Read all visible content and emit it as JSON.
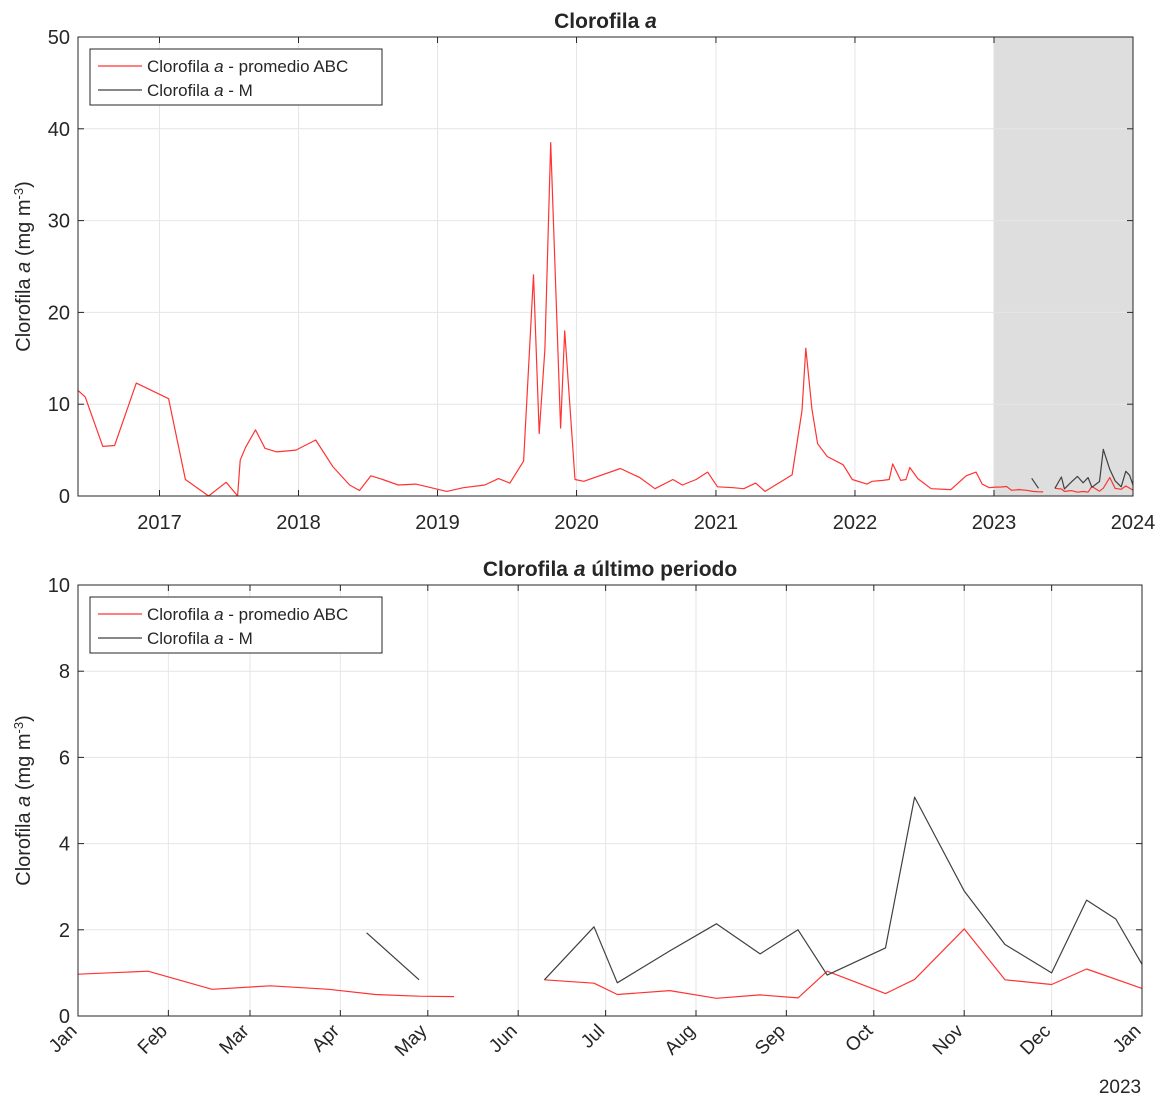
{
  "chart_data": [
    {
      "type": "line",
      "title": {
        "pre": "Clorofila ",
        "italic": "a",
        "post": ""
      },
      "ylabel": {
        "pre": "Clorofila ",
        "italic": "a",
        "post": " (mg m",
        "sup": "-3",
        "close": ")"
      },
      "xlabel": "",
      "xlim": [
        "2016-06-01",
        "2024-01-01"
      ],
      "ylim": [
        0,
        50
      ],
      "y_ticks": [
        0,
        10,
        20,
        30,
        40,
        50
      ],
      "x_ticks": [
        {
          "label": "2017",
          "date": "2017-01-01"
        },
        {
          "label": "2018",
          "date": "2018-01-01"
        },
        {
          "label": "2019",
          "date": "2019-01-01"
        },
        {
          "label": "2020",
          "date": "2020-01-01"
        },
        {
          "label": "2021",
          "date": "2021-01-01"
        },
        {
          "label": "2022",
          "date": "2022-01-01"
        },
        {
          "label": "2023",
          "date": "2023-01-01"
        },
        {
          "label": "2024",
          "date": "2024-01-01"
        }
      ],
      "grid": true,
      "legend": "top-left",
      "shaded_region": {
        "from": "2023-01-01",
        "to": "2024-01-01",
        "color": "#dedede"
      },
      "series": [
        {
          "name": {
            "pre": "Clorofila ",
            "italic": "a",
            "post": " - promedio ABC"
          },
          "color": "#ff3333",
          "points": [
            [
              "2016-06-01",
              11.5
            ],
            [
              "2016-06-20",
              10.8
            ],
            [
              "2016-08-05",
              5.4
            ],
            [
              "2016-09-05",
              5.5
            ],
            [
              "2016-11-01",
              12.3
            ],
            [
              "2017-01-25",
              10.6
            ],
            [
              "2017-03-10",
              1.8
            ],
            [
              "2017-05-10",
              0.0
            ],
            [
              "2017-06-25",
              1.5
            ],
            [
              "2017-07-25",
              0.0
            ],
            [
              "2017-08-01",
              3.9
            ],
            [
              "2017-08-15",
              5.3
            ],
            [
              "2017-09-10",
              7.2
            ],
            [
              "2017-10-05",
              5.2
            ],
            [
              "2017-11-05",
              4.8
            ],
            [
              "2017-12-25",
              5.0
            ],
            [
              "2018-02-15",
              6.1
            ],
            [
              "2018-04-01",
              3.2
            ],
            [
              "2018-05-15",
              1.2
            ],
            [
              "2018-06-10",
              0.6
            ],
            [
              "2018-07-10",
              2.2
            ],
            [
              "2018-08-10",
              1.8
            ],
            [
              "2018-09-20",
              1.2
            ],
            [
              "2018-11-05",
              1.3
            ],
            [
              "2018-12-15",
              0.9
            ],
            [
              "2019-01-25",
              0.5
            ],
            [
              "2019-03-10",
              0.9
            ],
            [
              "2019-05-05",
              1.2
            ],
            [
              "2019-06-10",
              1.9
            ],
            [
              "2019-07-10",
              1.4
            ],
            [
              "2019-08-15",
              3.8
            ],
            [
              "2019-09-10",
              24.1
            ],
            [
              "2019-09-25",
              6.8
            ],
            [
              "2019-10-10",
              16.0
            ],
            [
              "2019-10-25",
              38.5
            ],
            [
              "2019-11-20",
              7.4
            ],
            [
              "2019-12-01",
              18.0
            ],
            [
              "2019-12-28",
              1.8
            ],
            [
              "2020-01-20",
              1.6
            ],
            [
              "2020-04-25",
              3.0
            ],
            [
              "2020-06-15",
              2.0
            ],
            [
              "2020-07-25",
              0.8
            ],
            [
              "2020-09-10",
              1.8
            ],
            [
              "2020-10-05",
              1.2
            ],
            [
              "2020-11-10",
              1.8
            ],
            [
              "2020-12-10",
              2.6
            ],
            [
              "2021-01-05",
              1.0
            ],
            [
              "2021-02-15",
              0.9
            ],
            [
              "2021-03-15",
              0.8
            ],
            [
              "2021-04-15",
              1.4
            ],
            [
              "2021-05-10",
              0.5
            ],
            [
              "2021-07-20",
              2.3
            ],
            [
              "2021-08-15",
              9.3
            ],
            [
              "2021-08-25",
              16.1
            ],
            [
              "2021-09-10",
              9.5
            ],
            [
              "2021-09-25",
              5.7
            ],
            [
              "2021-10-20",
              4.3
            ],
            [
              "2021-12-01",
              3.4
            ],
            [
              "2021-12-25",
              1.8
            ],
            [
              "2022-02-01",
              1.3
            ],
            [
              "2022-02-15",
              1.6
            ],
            [
              "2022-03-15",
              1.7
            ],
            [
              "2022-04-01",
              1.8
            ],
            [
              "2022-04-10",
              3.5
            ],
            [
              "2022-05-01",
              1.7
            ],
            [
              "2022-05-15",
              1.8
            ],
            [
              "2022-05-25",
              3.1
            ],
            [
              "2022-06-15",
              1.9
            ],
            [
              "2022-07-20",
              0.8
            ],
            [
              "2022-09-10",
              0.7
            ],
            [
              "2022-10-20",
              2.2
            ],
            [
              "2022-11-15",
              2.6
            ],
            [
              "2022-12-01",
              1.3
            ],
            [
              "2022-12-20",
              0.9
            ],
            [
              "2023-01-05",
              0.97
            ],
            [
              "2023-01-20",
              0.98
            ],
            [
              "2023-02-03",
              1.04
            ],
            [
              "2023-02-16",
              0.62
            ],
            [
              "2023-03-08",
              0.7
            ],
            [
              "2023-03-28",
              0.62
            ],
            [
              "2023-04-13",
              0.5
            ],
            [
              "2023-04-28",
              0.46
            ],
            [
              "2023-05-10",
              0.45
            ],
            null,
            [
              "2023-06-10",
              0.84
            ],
            [
              "2023-06-27",
              0.76
            ],
            [
              "2023-07-05",
              0.5
            ],
            [
              "2023-07-23",
              0.59
            ],
            [
              "2023-08-08",
              0.41
            ],
            [
              "2023-08-23",
              0.49
            ],
            [
              "2023-09-05",
              0.42
            ],
            [
              "2023-09-15",
              1.04
            ],
            [
              "2023-10-05",
              0.52
            ],
            [
              "2023-10-15",
              0.85
            ],
            [
              "2023-11-01",
              2.02
            ],
            [
              "2023-11-15",
              0.84
            ],
            [
              "2023-12-01",
              0.73
            ],
            [
              "2023-12-13",
              1.09
            ],
            [
              "2024-01-01",
              0.64
            ]
          ]
        },
        {
          "name": {
            "pre": "Clorofila ",
            "italic": "a",
            "post": " - M"
          },
          "color": "#404040",
          "points": [
            [
              "2023-04-10",
              1.93
            ],
            [
              "2023-04-28",
              0.84
            ],
            null,
            [
              "2023-06-10",
              0.84
            ],
            [
              "2023-06-27",
              2.07
            ],
            [
              "2023-07-05",
              0.77
            ],
            [
              "2023-07-23",
              1.51
            ],
            [
              "2023-08-08",
              2.14
            ],
            [
              "2023-08-23",
              1.44
            ],
            [
              "2023-09-05",
              2.0
            ],
            [
              "2023-09-15",
              0.95
            ],
            [
              "2023-10-05",
              1.58
            ],
            [
              "2023-10-15",
              5.08
            ],
            [
              "2023-11-01",
              2.9
            ],
            [
              "2023-11-15",
              1.66
            ],
            [
              "2023-12-01",
              1.0
            ],
            [
              "2023-12-13",
              2.69
            ],
            [
              "2023-12-23",
              2.25
            ],
            [
              "2024-01-01",
              1.2
            ]
          ]
        }
      ]
    },
    {
      "type": "line",
      "title": {
        "pre": "Clorofila ",
        "italic": "a",
        "post": " último periodo"
      },
      "ylabel": {
        "pre": "Clorofila ",
        "italic": "a",
        "post": " (mg m",
        "sup": "-3",
        "close": ")"
      },
      "xlabel": "",
      "year_label": "2023",
      "xlim": [
        "2023-01-01",
        "2024-01-01"
      ],
      "ylim": [
        0,
        10
      ],
      "y_ticks": [
        0,
        2,
        4,
        6,
        8,
        10
      ],
      "x_ticks": [
        {
          "label": "Jan",
          "date": "2023-01-01"
        },
        {
          "label": "Feb",
          "date": "2023-02-01"
        },
        {
          "label": "Mar",
          "date": "2023-03-01"
        },
        {
          "label": "Apr",
          "date": "2023-04-01"
        },
        {
          "label": "May",
          "date": "2023-05-01"
        },
        {
          "label": "Jun",
          "date": "2023-06-01"
        },
        {
          "label": "Jul",
          "date": "2023-07-01"
        },
        {
          "label": "Aug",
          "date": "2023-08-01"
        },
        {
          "label": "Sep",
          "date": "2023-09-01"
        },
        {
          "label": "Oct",
          "date": "2023-10-01"
        },
        {
          "label": "Nov",
          "date": "2023-11-01"
        },
        {
          "label": "Dec",
          "date": "2023-12-01"
        },
        {
          "label": "Jan",
          "date": "2024-01-01"
        }
      ],
      "grid": true,
      "legend": "top-left",
      "series": [
        {
          "name": {
            "pre": "Clorofila ",
            "italic": "a",
            "post": " - promedio ABC"
          },
          "color": "#ff3333",
          "points": [
            [
              "2023-01-01",
              0.97
            ],
            [
              "2023-01-25",
              1.04
            ],
            [
              "2023-02-16",
              0.62
            ],
            [
              "2023-03-08",
              0.7
            ],
            [
              "2023-03-28",
              0.62
            ],
            [
              "2023-04-13",
              0.5
            ],
            [
              "2023-04-28",
              0.46
            ],
            [
              "2023-05-10",
              0.45
            ],
            null,
            [
              "2023-06-10",
              0.84
            ],
            [
              "2023-06-27",
              0.76
            ],
            [
              "2023-07-05",
              0.5
            ],
            [
              "2023-07-23",
              0.59
            ],
            [
              "2023-08-08",
              0.41
            ],
            [
              "2023-08-23",
              0.49
            ],
            [
              "2023-09-05",
              0.42
            ],
            [
              "2023-09-15",
              1.04
            ],
            [
              "2023-10-05",
              0.52
            ],
            [
              "2023-10-15",
              0.85
            ],
            [
              "2023-11-01",
              2.02
            ],
            [
              "2023-11-15",
              0.84
            ],
            [
              "2023-12-01",
              0.73
            ],
            [
              "2023-12-13",
              1.09
            ],
            [
              "2024-01-01",
              0.64
            ]
          ]
        },
        {
          "name": {
            "pre": "Clorofila ",
            "italic": "a",
            "post": " - M"
          },
          "color": "#404040",
          "points": [
            [
              "2023-04-10",
              1.93
            ],
            [
              "2023-04-28",
              0.84
            ],
            null,
            [
              "2023-06-10",
              0.84
            ],
            [
              "2023-06-27",
              2.07
            ],
            [
              "2023-07-05",
              0.77
            ],
            [
              "2023-07-23",
              1.51
            ],
            [
              "2023-08-08",
              2.14
            ],
            [
              "2023-08-23",
              1.44
            ],
            [
              "2023-09-05",
              2.0
            ],
            [
              "2023-09-15",
              0.95
            ],
            [
              "2023-10-05",
              1.58
            ],
            [
              "2023-10-15",
              5.08
            ],
            [
              "2023-11-01",
              2.9
            ],
            [
              "2023-11-15",
              1.66
            ],
            [
              "2023-12-01",
              1.0
            ],
            [
              "2023-12-13",
              2.69
            ],
            [
              "2023-12-23",
              2.25
            ],
            [
              "2024-01-01",
              1.2
            ]
          ]
        }
      ]
    }
  ]
}
